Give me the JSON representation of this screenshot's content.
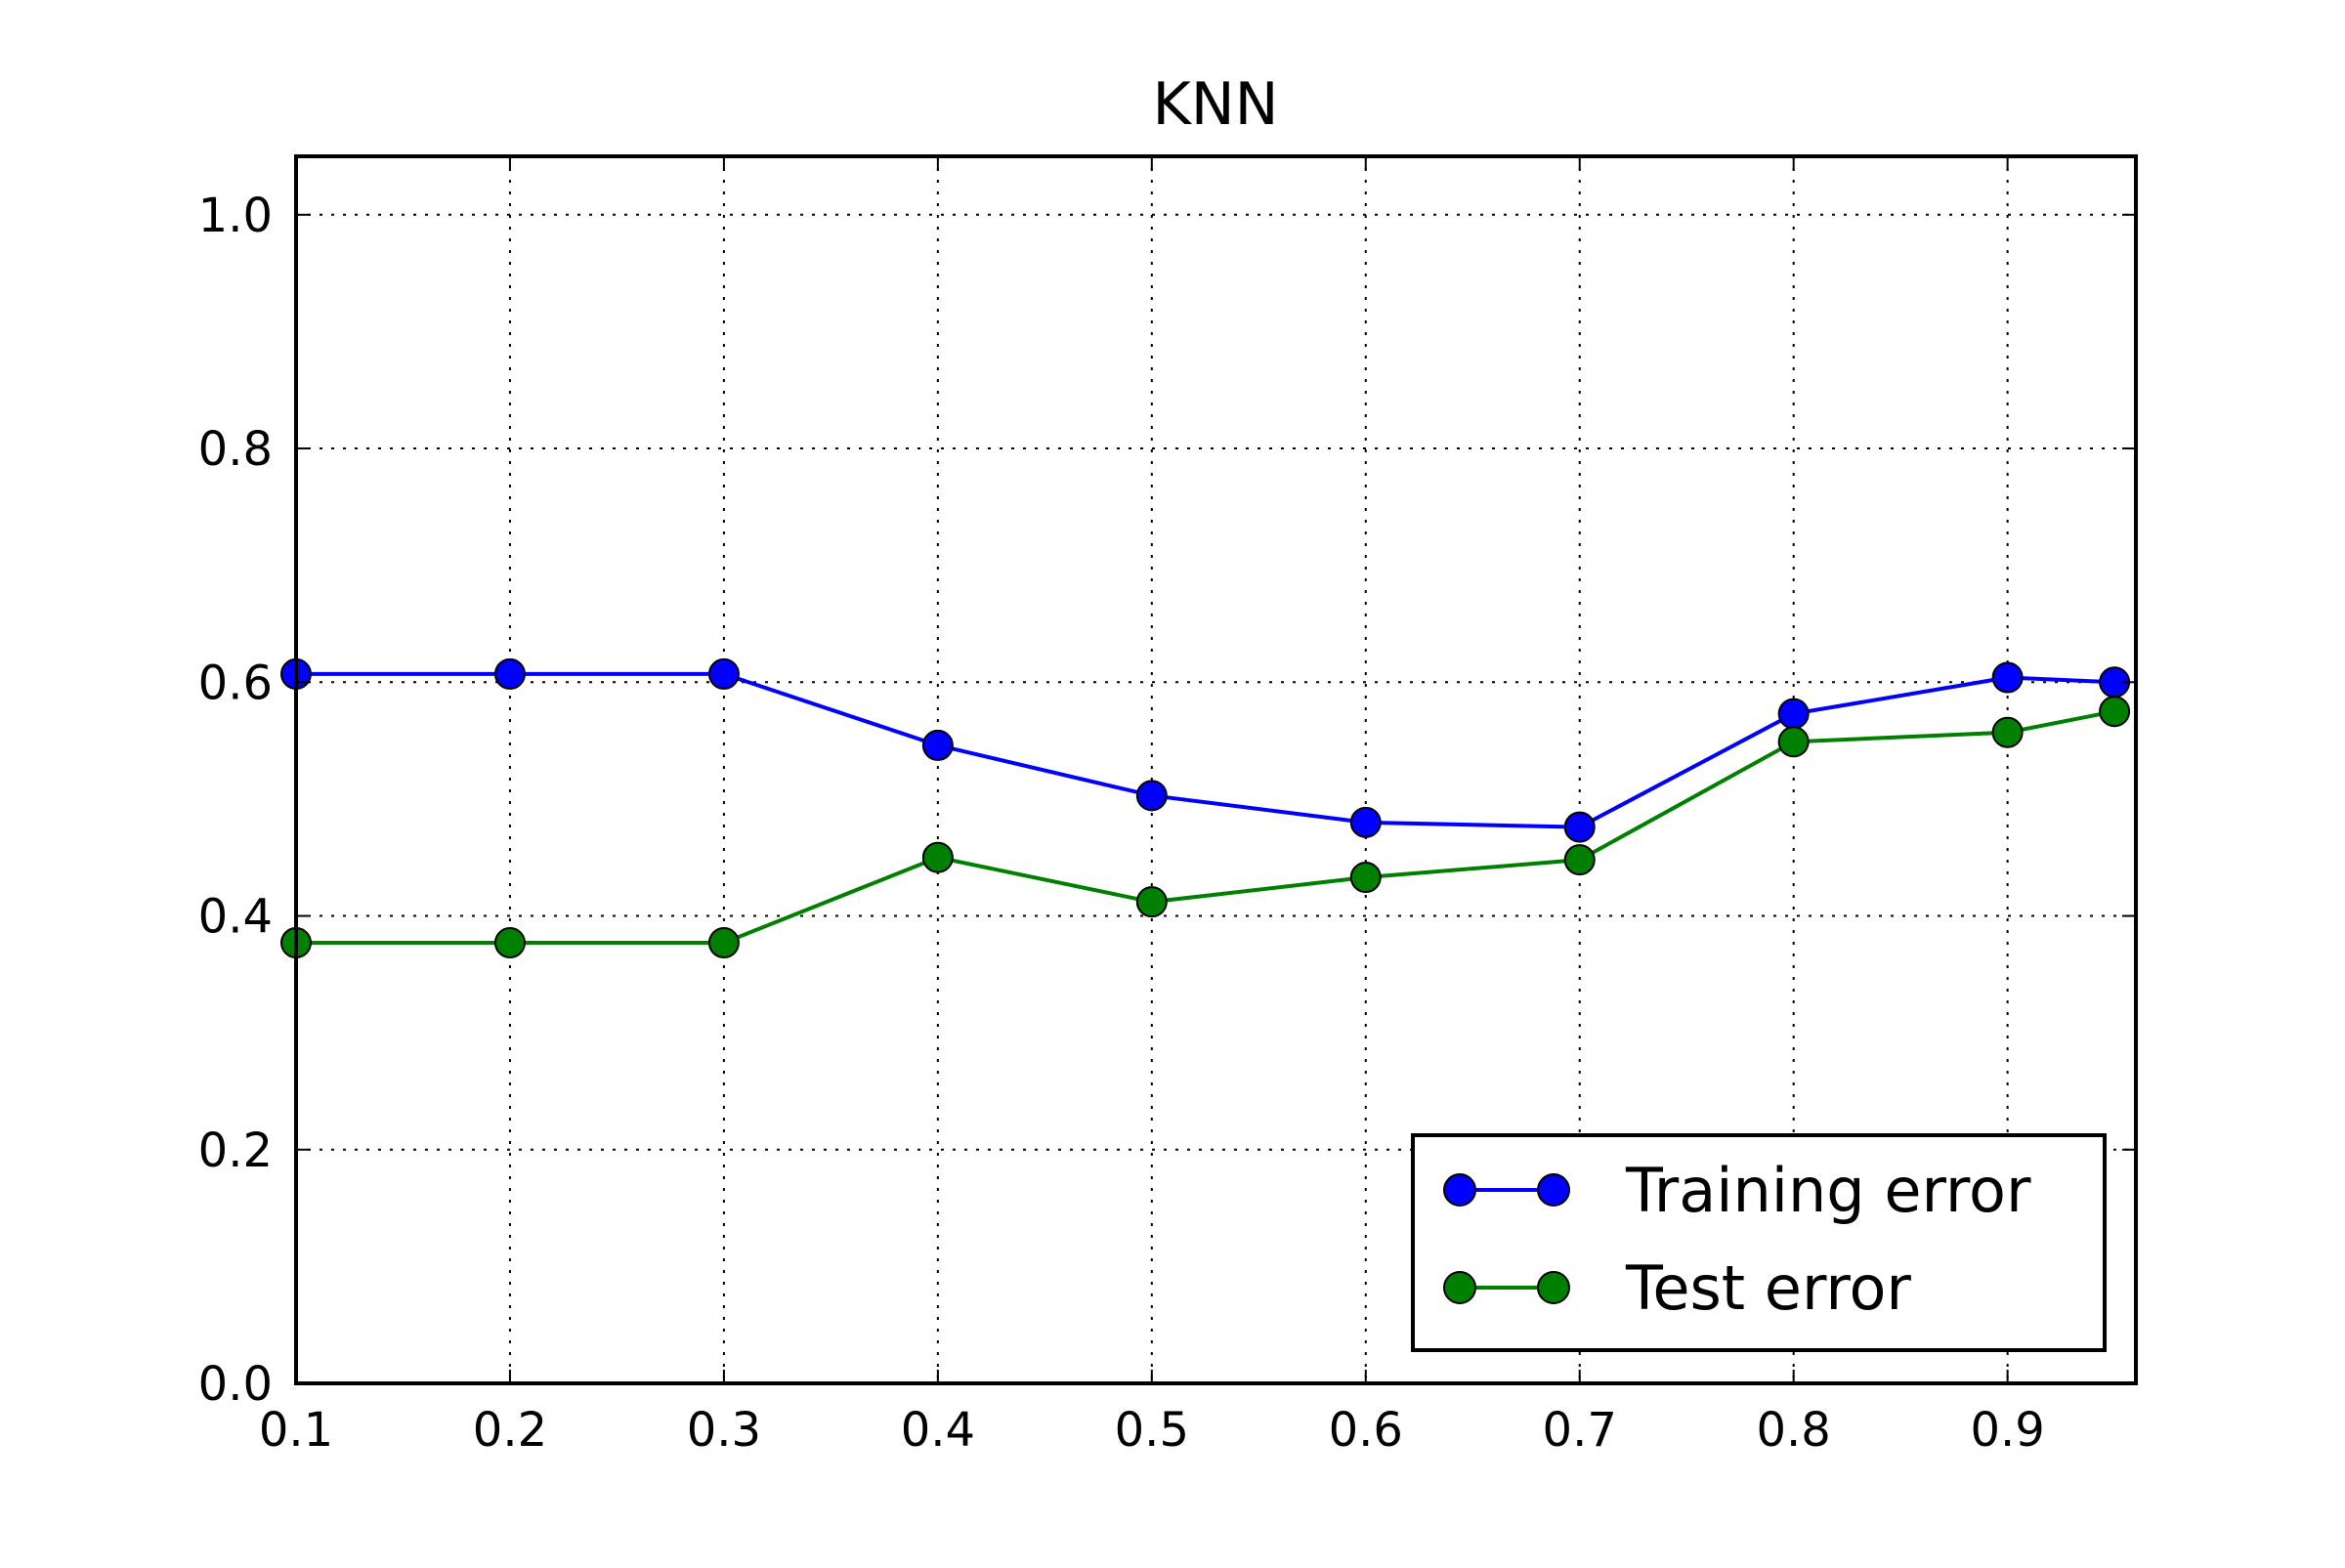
{
  "chart_data": {
    "type": "line",
    "title": "KNN",
    "xlabel": "",
    "ylabel": "",
    "xlim": [
      0.1,
      0.96
    ],
    "ylim": [
      0.0,
      1.05
    ],
    "xticks": [
      0.1,
      0.2,
      0.3,
      0.4,
      0.5,
      0.6,
      0.7,
      0.8,
      0.9
    ],
    "xtick_labels": [
      "0.1",
      "0.2",
      "0.3",
      "0.4",
      "0.5",
      "0.6",
      "0.7",
      "0.8",
      "0.9"
    ],
    "yticks": [
      0.0,
      0.2,
      0.4,
      0.6,
      0.8,
      1.0
    ],
    "ytick_labels": [
      "0.0",
      "0.2",
      "0.4",
      "0.6",
      "0.8",
      "1.0"
    ],
    "grid": true,
    "grid_style": "dotted",
    "legend_position": "lower-right",
    "x": [
      0.1,
      0.2,
      0.3,
      0.4,
      0.5,
      0.6,
      0.7,
      0.8,
      0.9,
      0.95
    ],
    "series": [
      {
        "name": "Training error",
        "color": "#0000ff",
        "marker": "circle",
        "values": [
          0.607,
          0.607,
          0.607,
          0.546,
          0.503,
          0.48,
          0.476,
          0.573,
          0.604,
          0.6
        ]
      },
      {
        "name": "Test error",
        "color": "#008000",
        "marker": "circle",
        "values": [
          0.377,
          0.377,
          0.377,
          0.45,
          0.412,
          0.433,
          0.448,
          0.549,
          0.557,
          0.575
        ]
      }
    ]
  }
}
